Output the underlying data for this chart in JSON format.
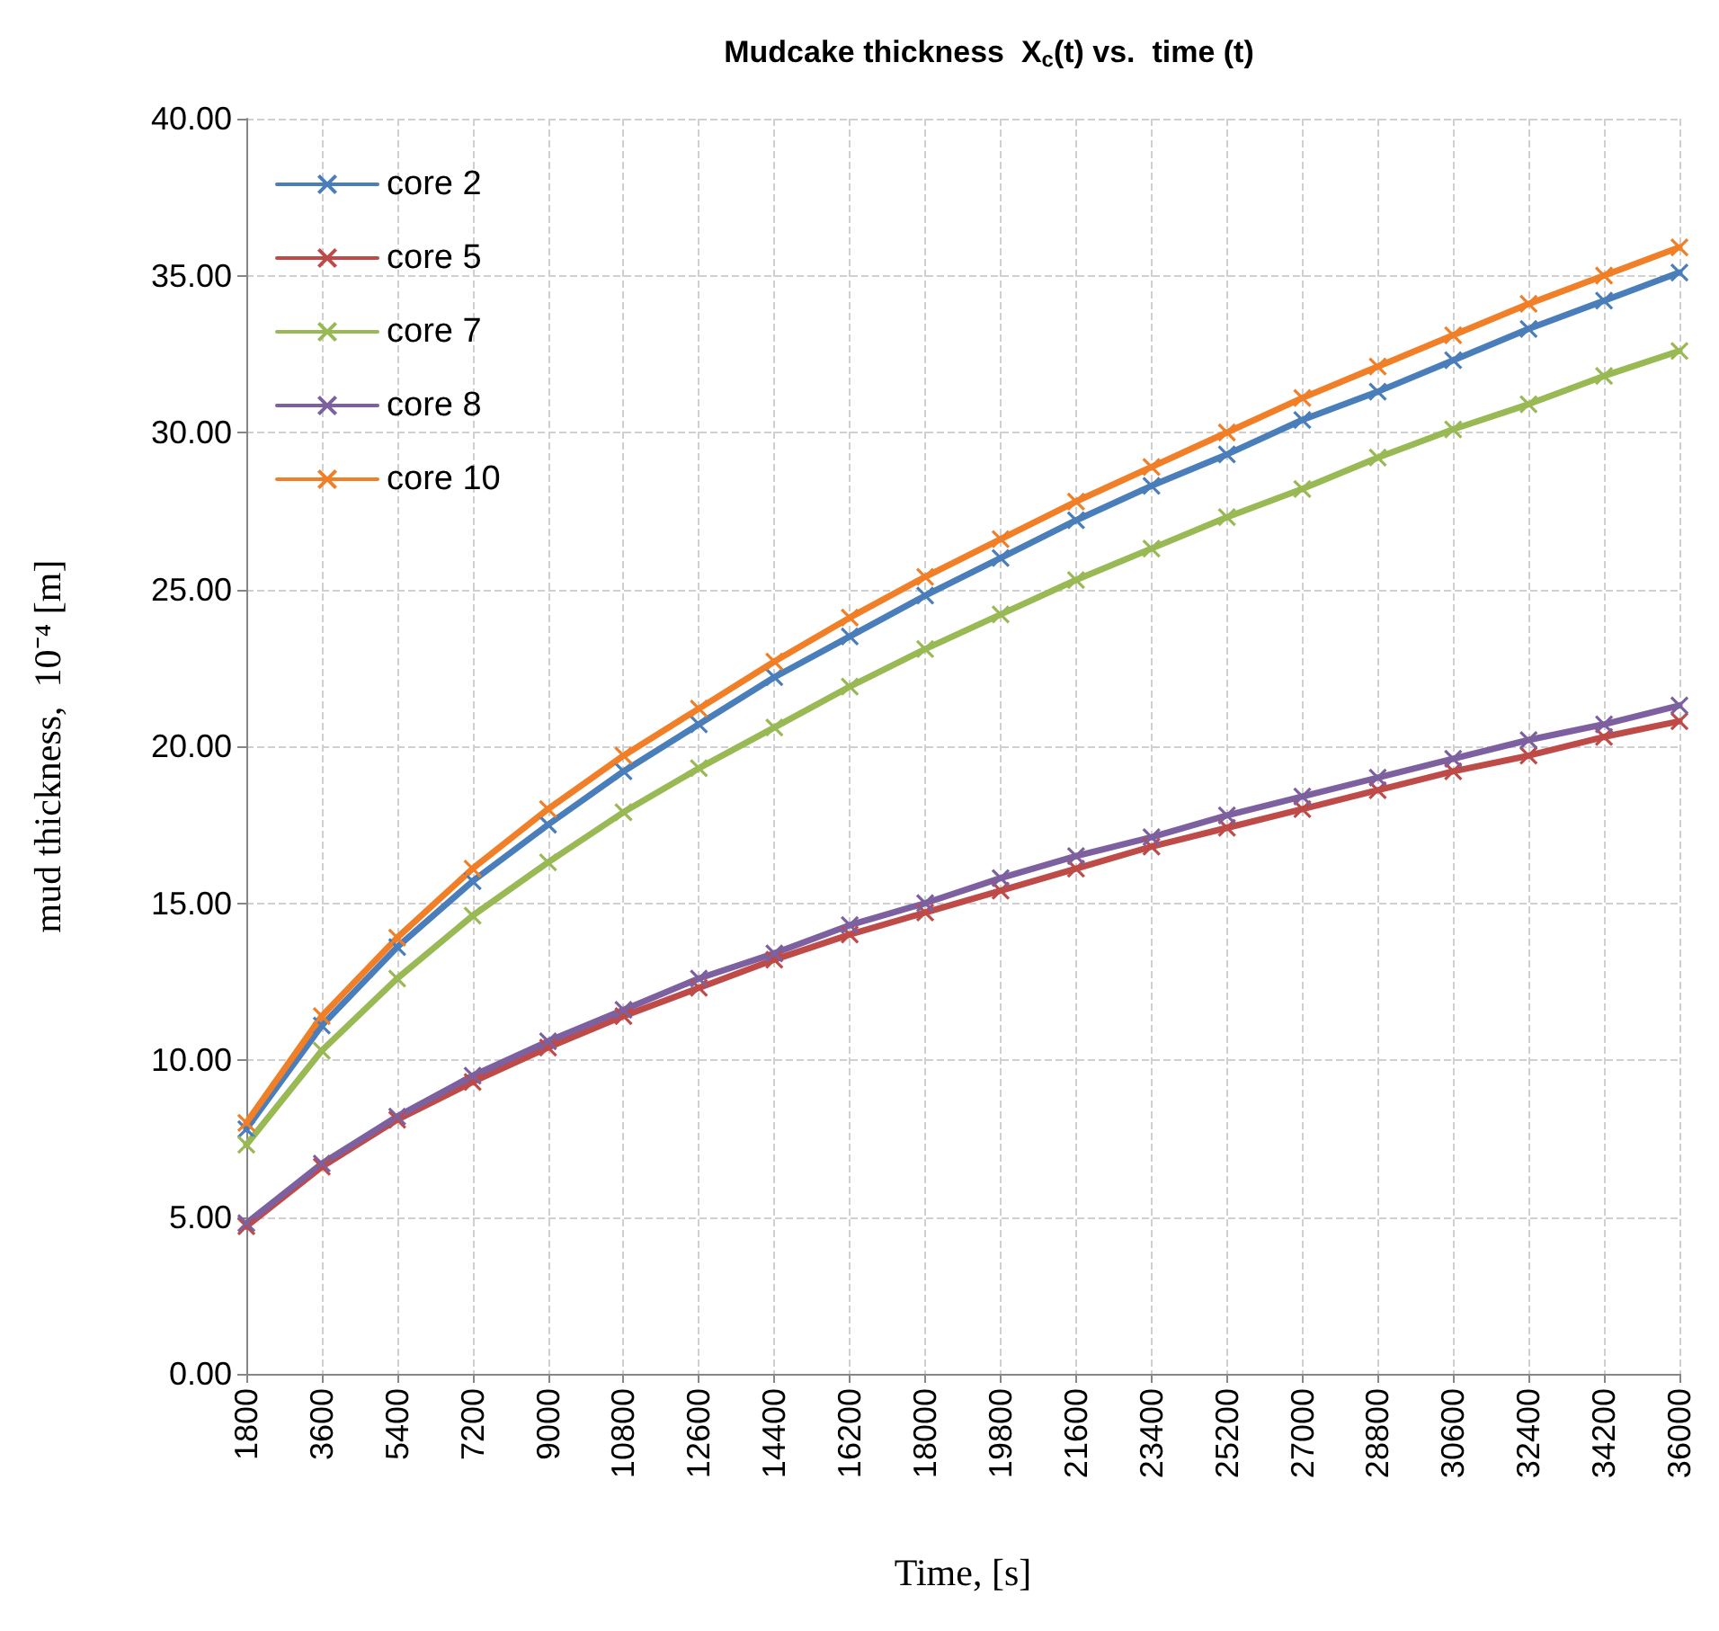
{
  "chart_data": {
    "type": "line",
    "title": "Mudcake thickness  X$_{c}$(t) vs.  time (t)",
    "xlabel": "Time, [s]",
    "ylabel": "mud thickness,  10⁻⁴ [m]",
    "categories": [
      "1800",
      "3600",
      "5400",
      "7200",
      "9000",
      "10800",
      "12600",
      "14400",
      "16200",
      "18000",
      "19800",
      "21600",
      "23400",
      "25200",
      "27000",
      "28800",
      "30600",
      "32400",
      "34200",
      "36000"
    ],
    "series": [
      {
        "name": "core 2",
        "color": "#4a7ebb",
        "values": [
          7.8,
          11.1,
          13.6,
          15.7,
          17.5,
          19.2,
          20.7,
          22.2,
          23.5,
          24.8,
          26.0,
          27.2,
          28.3,
          29.3,
          30.4,
          31.3,
          32.3,
          33.3,
          34.2,
          35.1
        ]
      },
      {
        "name": "core 5",
        "color": "#be4b48",
        "values": [
          4.7,
          6.6,
          8.1,
          9.3,
          10.4,
          11.4,
          12.3,
          13.2,
          14.0,
          14.7,
          15.4,
          16.1,
          16.8,
          17.4,
          18.0,
          18.6,
          19.2,
          19.7,
          20.3,
          20.8
        ]
      },
      {
        "name": "core 7",
        "color": "#98b954",
        "values": [
          7.3,
          10.3,
          12.6,
          14.6,
          16.3,
          17.9,
          19.3,
          20.6,
          21.9,
          23.1,
          24.2,
          25.3,
          26.3,
          27.3,
          28.2,
          29.2,
          30.1,
          30.9,
          31.8,
          32.6
        ]
      },
      {
        "name": "core 8",
        "color": "#7d60a0",
        "values": [
          4.8,
          6.7,
          8.2,
          9.5,
          10.6,
          11.6,
          12.6,
          13.4,
          14.3,
          15.0,
          15.8,
          16.5,
          17.1,
          17.8,
          18.4,
          19.0,
          19.6,
          20.2,
          20.7,
          21.3
        ]
      },
      {
        "name": "core 10",
        "color": "#f07f27",
        "values": [
          8.0,
          11.4,
          13.9,
          16.1,
          18.0,
          19.7,
          21.2,
          22.7,
          24.1,
          25.4,
          26.6,
          27.8,
          28.9,
          30.0,
          31.1,
          32.1,
          33.1,
          34.1,
          35.0,
          35.9
        ]
      }
    ],
    "ylim": [
      0,
      40
    ],
    "yticks": [
      {
        "value": 0,
        "label": "0.00"
      },
      {
        "value": 5,
        "label": "5.00"
      },
      {
        "value": 10,
        "label": "10.00"
      },
      {
        "value": 15,
        "label": "15.00"
      },
      {
        "value": 20,
        "label": "20.00"
      },
      {
        "value": 25,
        "label": "25.00"
      },
      {
        "value": 30,
        "label": "30.00"
      },
      {
        "value": 35,
        "label": "35.00"
      },
      {
        "value": 40,
        "label": "40.00"
      }
    ],
    "grid": true,
    "legend": "top left",
    "marker": "cross",
    "line_style": "solid"
  }
}
